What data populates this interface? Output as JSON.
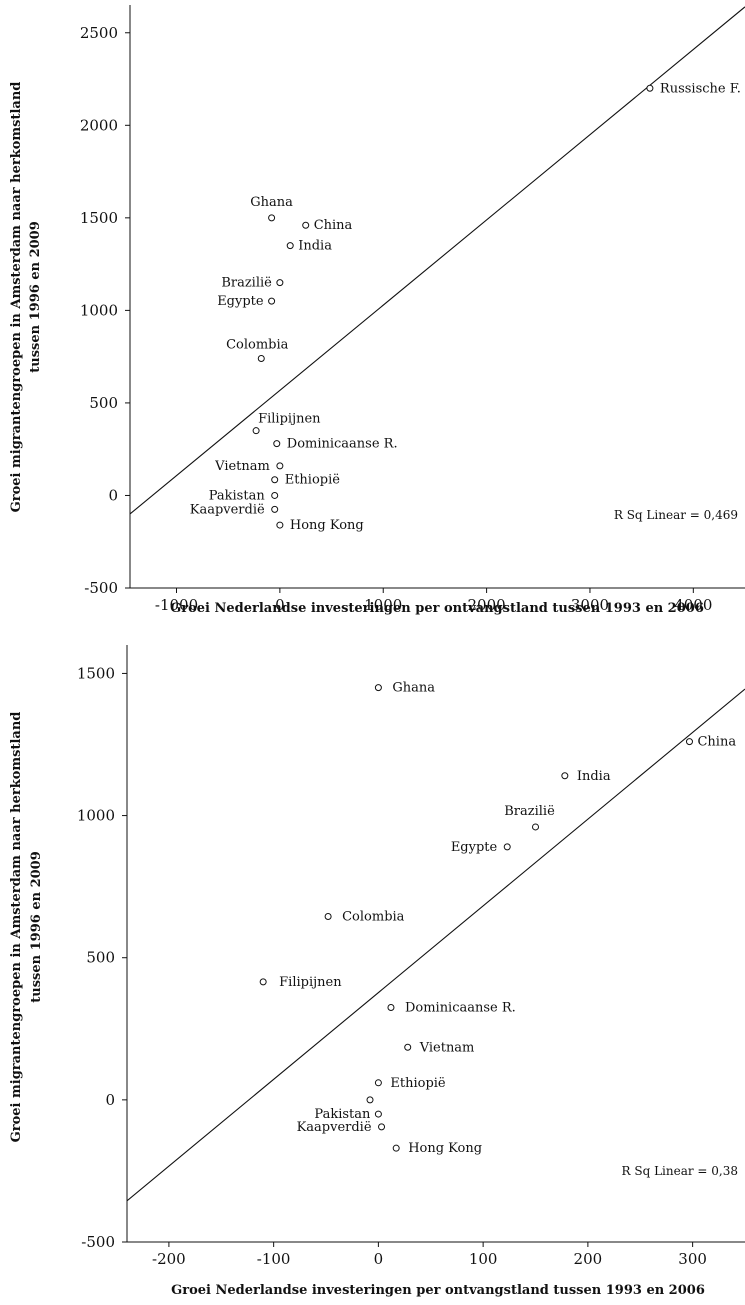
{
  "chart_data": [
    {
      "type": "scatter",
      "xlabel": "Groei Nederlandse investeringen per ontvangstland tussen 1993 en 2006",
      "ylabel": [
        "Groei migrantengroepen in Amsterdam naar herkomstland",
        "tussen 1996 en 2009"
      ],
      "xlim": [
        -1450,
        4500
      ],
      "ylim": [
        -500,
        2650
      ],
      "xticks": [
        -1000,
        0,
        1000,
        2000,
        3000,
        4000
      ],
      "yticks": [
        -500,
        0,
        500,
        1000,
        1500,
        2000,
        2500
      ],
      "r_squared_label": "R Sq Linear = 0,469",
      "fit_line": {
        "x": [
          -1450,
          4500
        ],
        "y": [
          -100,
          2640
        ]
      },
      "points": [
        {
          "label": "Russische F.",
          "x": 3580,
          "y": 2200
        },
        {
          "label": "Ghana",
          "x": -80,
          "y": 1500
        },
        {
          "label": "China",
          "x": 250,
          "y": 1460
        },
        {
          "label": "India",
          "x": 100,
          "y": 1350
        },
        {
          "label": "Brazilië",
          "x": 0,
          "y": 1150
        },
        {
          "label": "Egypte",
          "x": -80,
          "y": 1050
        },
        {
          "label": "Colombia",
          "x": -180,
          "y": 740
        },
        {
          "label": "Filipijnen",
          "x": -230,
          "y": 350
        },
        {
          "label": "Dominicaanse R.",
          "x": -30,
          "y": 280
        },
        {
          "label": "Vietnam",
          "x": 0,
          "y": 160
        },
        {
          "label": "Ethiopië",
          "x": -50,
          "y": 85
        },
        {
          "label": "Pakistan",
          "x": -50,
          "y": 0
        },
        {
          "label": "Kaapverdië",
          "x": -50,
          "y": -75
        },
        {
          "label": "Hong Kong",
          "x": 0,
          "y": -160
        }
      ]
    },
    {
      "type": "scatter",
      "xlabel": "Groei Nederlandse investeringen per ontvangstland tussen 1993 en 2006",
      "ylabel": [
        "Groei migrantengroepen in Amsterdam naar herkomstland",
        "tussen 1996 en 2009"
      ],
      "xlim": [
        -240,
        350
      ],
      "ylim": [
        -500,
        1600
      ],
      "xticks": [
        -200,
        -100,
        0,
        100,
        200,
        300
      ],
      "yticks": [
        -500,
        0,
        500,
        1000,
        1500
      ],
      "r_squared_label": "R Sq Linear = 0,38",
      "fit_line": {
        "x": [
          -240,
          350
        ],
        "y": [
          -355,
          1445
        ]
      },
      "points": [
        {
          "label": "Ghana",
          "x": 0,
          "y": 1450
        },
        {
          "label": "China",
          "x": 297,
          "y": 1260
        },
        {
          "label": "India",
          "x": 178,
          "y": 1140
        },
        {
          "label": "Brazilië",
          "x": 150,
          "y": 960
        },
        {
          "label": "Egypte",
          "x": 123,
          "y": 890
        },
        {
          "label": "Colombia",
          "x": -48,
          "y": 645
        },
        {
          "label": "Filipijnen",
          "x": -110,
          "y": 415
        },
        {
          "label": "Dominicaanse R.",
          "x": 12,
          "y": 325
        },
        {
          "label": "Vietnam",
          "x": 28,
          "y": 185
        },
        {
          "label": "Ethiopië",
          "x": 0,
          "y": 60
        },
        {
          "label": "",
          "x": -8,
          "y": 0
        },
        {
          "label": "Pakistan",
          "x": 0,
          "y": -50
        },
        {
          "label": "Kaapverdië",
          "x": 3,
          "y": -95
        },
        {
          "label": "Hong Kong",
          "x": 17,
          "y": -170
        }
      ]
    }
  ]
}
